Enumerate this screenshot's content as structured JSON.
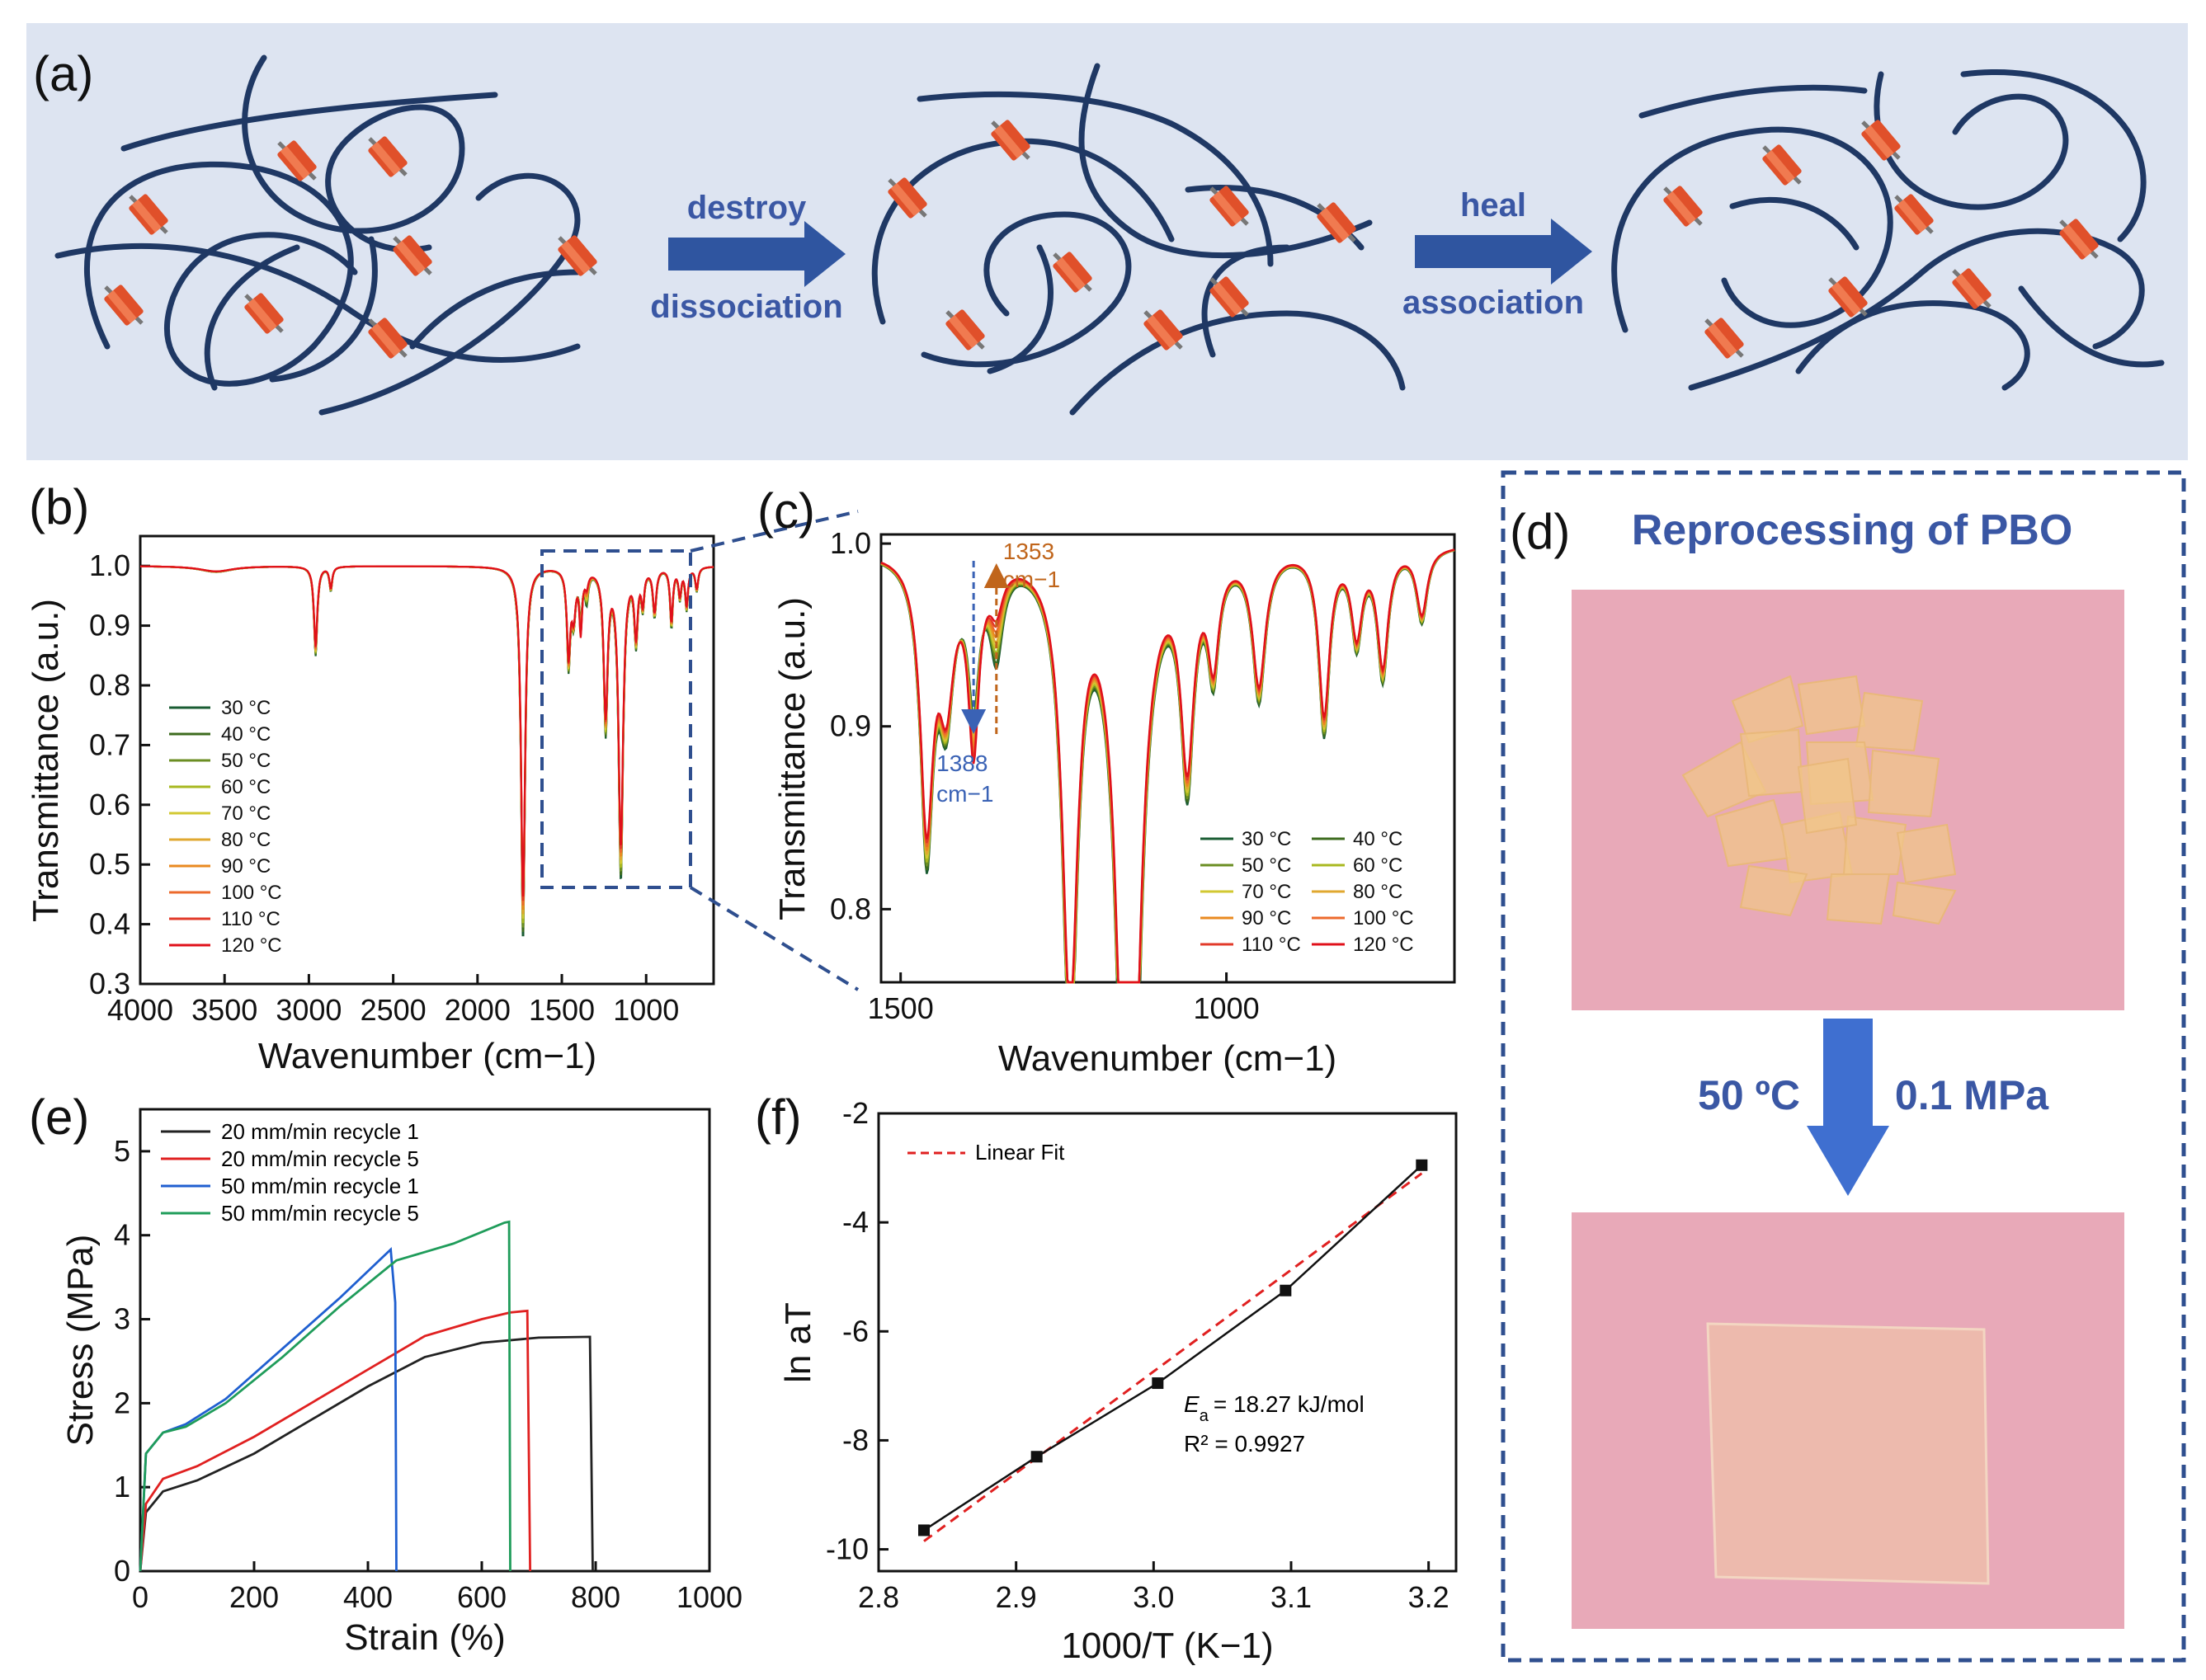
{
  "panel_a": {
    "label": "(a)",
    "arrow1_top": "destroy",
    "arrow1_bottom": "dissociation",
    "arrow2_top": "heal",
    "arrow2_bottom": "association",
    "colors": {
      "background": "#dde4f1",
      "chain": "#1f3864",
      "unit": "#e0502a",
      "arrow": "#2f55a0"
    }
  },
  "panel_d": {
    "label": "(d)",
    "title": "Reprocessing of PBO",
    "condition_left": "50 ºC",
    "condition_right": "0.1 MPa",
    "colors": {
      "title": "#3a57a4",
      "photo_bg": "#e8a9b8",
      "arrow": "#3f6fd0",
      "border": "#2f4f8f"
    }
  },
  "chart_data": [
    {
      "panel": "(b)",
      "type": "line",
      "title": "",
      "xlabel": "Wavenumber (cm−1)",
      "ylabel": "Transmittance (a.u.)",
      "xlim": [
        4000,
        600
      ],
      "ylim": [
        0.3,
        1.05
      ],
      "xticks": [
        "4000",
        "3500",
        "3000",
        "2500",
        "2000",
        "1500",
        "1000"
      ],
      "yticks": [
        "0.3",
        "0.4",
        "0.5",
        "0.6",
        "0.7",
        "0.8",
        "0.9",
        "1.0"
      ],
      "legend_location": "lower-left",
      "series_names": [
        "30 °C",
        "40 °C",
        "50 °C",
        "60 °C",
        "70 °C",
        "80 °C",
        "90 °C",
        "100 °C",
        "110 °C",
        "120 °C"
      ],
      "series_colors": [
        "#1a5c33",
        "#3d6b1e",
        "#6b8e23",
        "#a8b820",
        "#d2c832",
        "#e0a830",
        "#e98a20",
        "#ec6a2c",
        "#e23a2a",
        "#e0101a"
      ],
      "key_points": {
        "x": [
          4000,
          3550,
          2960,
          2870,
          1730,
          1460,
          1380,
          1240,
          1150,
          1060,
          950,
          850,
          760,
          650
        ],
        "min_y": [
          1.0,
          0.99,
          0.85,
          0.96,
          0.37,
          0.84,
          0.9,
          0.74,
          0.48,
          0.88,
          0.92,
          0.9,
          0.93,
          0.98
        ]
      }
    },
    {
      "panel": "(c)",
      "type": "line",
      "xlabel": "Wavenumber (cm−1)",
      "ylabel": "Transmittance (a.u.)",
      "xlim": [
        1530,
        650
      ],
      "ylim": [
        0.76,
        1.005
      ],
      "xticks": [
        "1500",
        "1000"
      ],
      "yticks": [
        "0.8",
        "0.9",
        "1.0"
      ],
      "annotations": [
        {
          "text": "1353",
          "line2": "cm−1",
          "color": "#c0651b",
          "x": 1353,
          "direction": "up"
        },
        {
          "text": "1388",
          "line2": "cm−1",
          "color": "#3a62b5",
          "x": 1388,
          "direction": "down"
        }
      ],
      "legend_location": "lower-right",
      "series_names": [
        "30 °C",
        "40 °C",
        "50 °C",
        "60 °C",
        "70 °C",
        "80 °C",
        "90 °C",
        "100 °C",
        "110 °C",
        "120 °C"
      ],
      "series_colors": [
        "#1a5c33",
        "#3d6b1e",
        "#6b8e23",
        "#a8b820",
        "#d2c832",
        "#e0a830",
        "#e98a20",
        "#ec6a2c",
        "#e23a2a",
        "#e0101a"
      ]
    },
    {
      "panel": "(e)",
      "type": "line",
      "xlabel": "Strain (%)",
      "ylabel": "Stress (MPa)",
      "xlim": [
        0,
        1000
      ],
      "ylim": [
        0,
        5.5
      ],
      "xticks": [
        "0",
        "200",
        "400",
        "600",
        "800",
        "1000"
      ],
      "yticks": [
        "0",
        "1",
        "2",
        "3",
        "4",
        "5"
      ],
      "legend_location": "top-left",
      "series": [
        {
          "name": "20 mm/min recycle 1",
          "color": "#222222",
          "x": [
            0,
            10,
            40,
            100,
            200,
            300,
            400,
            500,
            600,
            700,
            790,
            795
          ],
          "y": [
            0,
            0.7,
            0.95,
            1.08,
            1.4,
            1.8,
            2.2,
            2.55,
            2.72,
            2.78,
            2.79,
            0
          ]
        },
        {
          "name": "20 mm/min recycle 5",
          "color": "#e02020",
          "x": [
            0,
            10,
            40,
            100,
            200,
            300,
            400,
            500,
            600,
            650,
            680,
            685
          ],
          "y": [
            0,
            0.8,
            1.1,
            1.25,
            1.6,
            2.0,
            2.4,
            2.8,
            3.0,
            3.08,
            3.1,
            0
          ]
        },
        {
          "name": "50 mm/min recycle 1",
          "color": "#1f5fd0",
          "x": [
            0,
            10,
            40,
            80,
            150,
            250,
            350,
            440,
            448,
            450
          ],
          "y": [
            0,
            1.4,
            1.65,
            1.75,
            2.05,
            2.65,
            3.25,
            3.83,
            3.2,
            0
          ]
        },
        {
          "name": "50 mm/min recycle 5",
          "color": "#1f9c5a",
          "x": [
            0,
            10,
            40,
            80,
            150,
            250,
            350,
            450,
            550,
            640,
            648,
            650
          ],
          "y": [
            0,
            1.4,
            1.65,
            1.72,
            2.0,
            2.55,
            3.15,
            3.7,
            3.9,
            4.15,
            4.16,
            0
          ]
        }
      ]
    },
    {
      "panel": "(f)",
      "type": "scatter",
      "xlabel": "1000/T (K−1)",
      "ylabel": "ln aT",
      "xlim": [
        2.8,
        3.22
      ],
      "ylim": [
        -10.4,
        -2
      ],
      "xticks": [
        "2.8",
        "2.9",
        "3.0",
        "3.1",
        "3.2"
      ],
      "yticks": [
        "-2",
        "-4",
        "-6",
        "-8",
        "-10"
      ],
      "legend": "Linear Fit",
      "legend_location": "top-left",
      "x": [
        2.833,
        2.915,
        3.003,
        3.096,
        3.195
      ],
      "y": [
        -9.65,
        -8.3,
        -6.95,
        -5.25,
        -2.95
      ],
      "fit_line": {
        "x": [
          2.833,
          3.195
        ],
        "y": [
          -9.85,
          -3.1
        ],
        "color": "#e02020"
      },
      "annotation_Ea": "= 18.27 kJ/mol",
      "annotation_Ea_symbol": "E",
      "annotation_Ea_sub": "a",
      "annotation_R2": "R² = 0.9927"
    }
  ]
}
